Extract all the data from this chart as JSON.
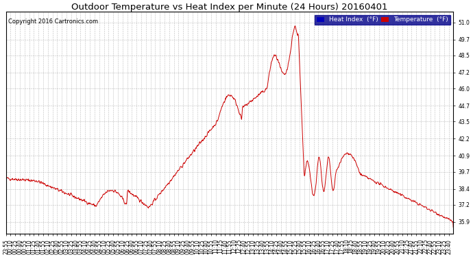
{
  "title": "Outdoor Temperature vs Heat Index per Minute (24 Hours) 20160401",
  "copyright": "Copyright 2016 Cartronics.com",
  "legend_labels": [
    "Heat Index  (°F)",
    "Temperature  (°F)"
  ],
  "legend_colors": [
    "#0000bb",
    "#cc0000"
  ],
  "line_color": "#cc0000",
  "background_color": "#ffffff",
  "grid_color": "#aaaaaa",
  "ylim": [
    35.0,
    51.8
  ],
  "yticks": [
    35.9,
    37.2,
    38.4,
    39.7,
    40.9,
    42.2,
    43.5,
    44.7,
    46.0,
    47.2,
    48.5,
    49.7,
    51.0
  ],
  "title_fontsize": 9.5,
  "copyright_fontsize": 6,
  "tick_fontsize": 5.5,
  "legend_fontsize": 6.5
}
